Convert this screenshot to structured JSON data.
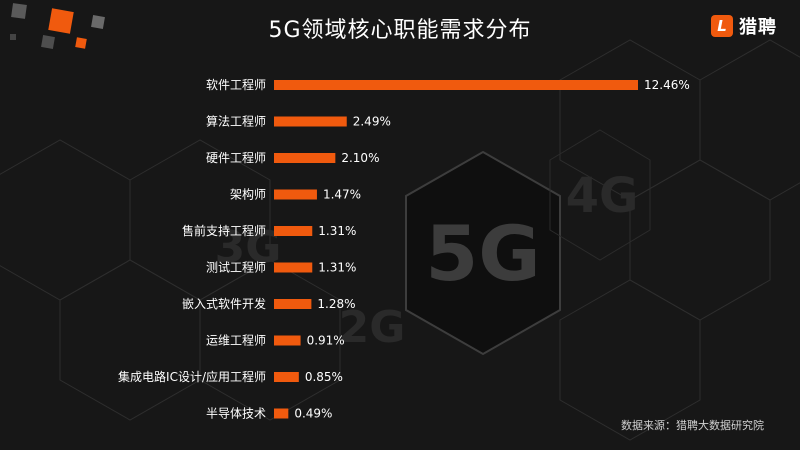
{
  "header": {
    "title": "5G领域核心职能需求分布"
  },
  "brand": {
    "logo_text": "猎聘",
    "logo_mark": "L",
    "color": "#f05a0e"
  },
  "background": {
    "labels": [
      "5G",
      "4G",
      "3G",
      "2G"
    ]
  },
  "footer": {
    "source": "数据来源：猎聘大数据研究院"
  },
  "chart_data": {
    "type": "bar",
    "orientation": "horizontal",
    "title": "5G领域核心职能需求分布",
    "categories": [
      "软件工程师",
      "算法工程师",
      "硬件工程师",
      "架构师",
      "售前支持工程师",
      "测试工程师",
      "嵌入式软件开发",
      "运维工程师",
      "集成电路IC设计/应用工程师",
      "半导体技术"
    ],
    "values": [
      12.46,
      2.49,
      2.1,
      1.47,
      1.31,
      1.31,
      1.28,
      0.91,
      0.85,
      0.49
    ],
    "value_labels": [
      "12.46%",
      "2.49%",
      "2.10%",
      "1.47%",
      "1.31%",
      "1.31%",
      "1.28%",
      "0.91%",
      "0.85%",
      "0.49%"
    ],
    "unit": "%",
    "bar_color": "#f05a0e",
    "grid": false,
    "legend": "none"
  }
}
